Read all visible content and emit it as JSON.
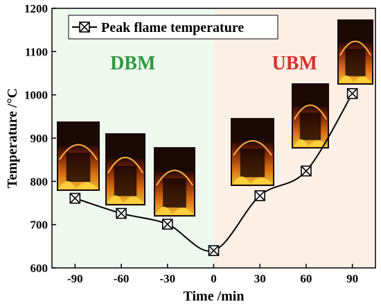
{
  "chart_data": {
    "type": "line",
    "title": "",
    "xlabel": "Time /min",
    "ylabel": "Temperature /°C",
    "xlim": [
      -105,
      105
    ],
    "ylim": [
      600,
      1200
    ],
    "xticks": [
      -90,
      -60,
      -30,
      0,
      30,
      60,
      90
    ],
    "yticks": [
      600,
      700,
      800,
      900,
      1000,
      1100,
      1200
    ],
    "grid": false,
    "legend": "top-left",
    "series": [
      {
        "name": "Peak flame temperature",
        "marker": "square-x",
        "smooth": true,
        "color": "#000000",
        "x": [
          -90,
          -60,
          -30,
          0,
          30,
          60,
          90
        ],
        "y": [
          761,
          726,
          701,
          640,
          767,
          824,
          1003
        ]
      }
    ],
    "regions": [
      {
        "label": "DBM",
        "x": [
          -105,
          0
        ],
        "fill": "#eef8ef",
        "label_color": "#2e9a3e"
      },
      {
        "label": "UBM",
        "x": [
          0,
          105
        ],
        "fill": "#fcefe6",
        "label_color": "#d8312c"
      }
    ],
    "flame_photos": [
      {
        "name": "flame-photo-minus-90",
        "x": -90
      },
      {
        "name": "flame-photo-minus-60",
        "x": -60
      },
      {
        "name": "flame-photo-minus-30",
        "x": -30
      },
      {
        "name": "flame-photo-30",
        "x": 30
      },
      {
        "name": "flame-photo-60",
        "x": 60
      },
      {
        "name": "flame-photo-90",
        "x": 90
      }
    ]
  }
}
